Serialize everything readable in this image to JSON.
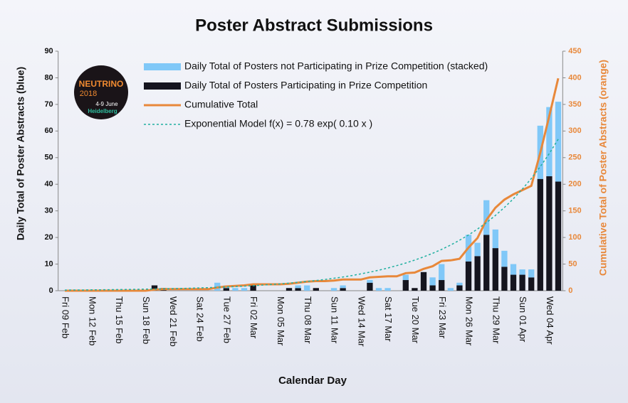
{
  "chart_data": {
    "type": "bar",
    "title": "Poster Abstract Submissions",
    "xlabel": "Calendar Day",
    "ylabel": "Daily Total of Poster Abstracts (blue)",
    "y2label": "Cumulative Total of Poster Abstracts (orange)",
    "categories": [
      "Fri 09 Feb",
      null,
      null,
      "Mon 12 Feb",
      null,
      null,
      "Thu 15 Feb",
      null,
      null,
      "Sun 18 Feb",
      null,
      null,
      "Wed 21 Feb",
      null,
      null,
      "Sat 24 Feb",
      null,
      null,
      "Tue 27 Feb",
      null,
      null,
      "Fri 02 Mar",
      null,
      null,
      "Mon 05 Mar",
      null,
      null,
      "Thu 08 Mar",
      null,
      null,
      "Sun 11 Mar",
      null,
      null,
      "Wed 14 Mar",
      null,
      null,
      "Sat 17 Mar",
      null,
      null,
      "Tue 20 Mar",
      null,
      null,
      "Fri 23 Mar",
      null,
      null,
      "Mon 26 Mar",
      null,
      null,
      "Thu 29 Mar",
      null,
      null,
      "Sun 01 Apr",
      null,
      null,
      "Wed 04 Apr",
      null
    ],
    "series": [
      {
        "name": "Daily Total of Posters not Participating in Prize Competition (stacked)",
        "color": "#80c8f8",
        "kind": "bar",
        "values": [
          0,
          0,
          0,
          0,
          0,
          0,
          0,
          0,
          0,
          0,
          0,
          0,
          0,
          0,
          0,
          0,
          0,
          3,
          1,
          1,
          1,
          0,
          0,
          0,
          0,
          0,
          1,
          2,
          0,
          0,
          1,
          1,
          0,
          0,
          1,
          1,
          1,
          0,
          2,
          0,
          0,
          3,
          6,
          1,
          1,
          10,
          5,
          13,
          7,
          6,
          4,
          2,
          3,
          20,
          26,
          30
        ]
      },
      {
        "name": "Daily Total of Posters Participating in Prize Competition",
        "color": "#15151f",
        "kind": "bar",
        "values": [
          0,
          0,
          0,
          0,
          0,
          0,
          0,
          0,
          0,
          0,
          2,
          1,
          0,
          0,
          0,
          0,
          0,
          0,
          1,
          0,
          0,
          2,
          0,
          0,
          0,
          1,
          1,
          0,
          1,
          0,
          0,
          1,
          0,
          0,
          3,
          0,
          0,
          0,
          4,
          1,
          7,
          2,
          4,
          0,
          2,
          11,
          13,
          21,
          16,
          9,
          6,
          6,
          5,
          42,
          43,
          41
        ]
      },
      {
        "name": "Cumulative Total",
        "color": "#e8883a",
        "kind": "line",
        "axis": "y2",
        "values": [
          0,
          0,
          0,
          0,
          0,
          0,
          0,
          0,
          0,
          0,
          2,
          3,
          3,
          3,
          3,
          3,
          3,
          6,
          8,
          9,
          10,
          12,
          12,
          12,
          12,
          13,
          15,
          17,
          18,
          18,
          19,
          21,
          21,
          21,
          25,
          26,
          27,
          27,
          33,
          34,
          41,
          46,
          56,
          57,
          60,
          81,
          99,
          133,
          156,
          171,
          181,
          189,
          197,
          259,
          328,
          399
        ]
      },
      {
        "name": "Exponential Model  f(x) = 0.78 exp( 0.10 x )",
        "color": "#20b0a0",
        "kind": "dashed",
        "axis": "y2",
        "values": [
          1.2,
          1.3,
          1.4,
          1.6,
          1.7,
          1.9,
          2.1,
          2.3,
          2.6,
          2.9,
          3.2,
          3.5,
          3.9,
          4.3,
          4.7,
          5.2,
          5.8,
          6.4,
          7.0,
          7.8,
          8.6,
          9.5,
          10.5,
          11.6,
          12.8,
          14.2,
          15.7,
          17.3,
          19.1,
          21.1,
          23.4,
          25.8,
          28.5,
          31.6,
          34.9,
          38.5,
          42.6,
          47.1,
          52.0,
          57.5,
          63.5,
          70.2,
          77.6,
          85.7,
          94.8,
          104.7,
          115.8,
          127.9,
          141.4,
          156.3,
          172.7,
          190.9,
          210.9,
          233.1,
          257.6,
          284.7
        ]
      }
    ],
    "ylim": [
      0,
      90
    ],
    "yticks": [
      0,
      10,
      20,
      30,
      40,
      50,
      60,
      70,
      80,
      90
    ],
    "y2lim": [
      0,
      450
    ],
    "y2ticks": [
      0,
      50,
      100,
      150,
      200,
      250,
      300,
      350,
      400,
      450
    ],
    "grid": false,
    "logo": {
      "name": "NEUTRINO",
      "year": "2018",
      "dates": "4-9 June",
      "place": "Heidelberg"
    }
  }
}
